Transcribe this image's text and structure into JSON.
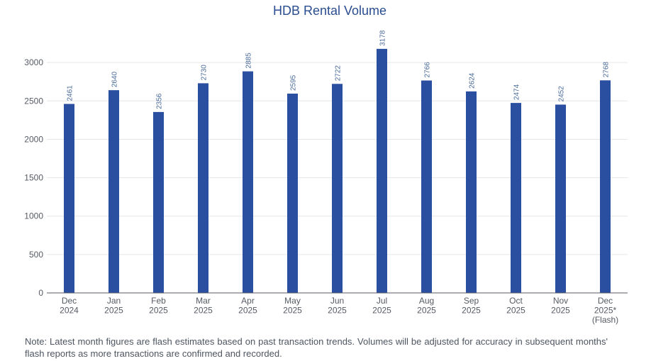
{
  "chart_data": {
    "type": "bar",
    "title": "HDB Rental Volume",
    "xlabel": "",
    "ylabel": "",
    "categories": [
      [
        "Dec",
        "2024"
      ],
      [
        "Jan",
        "2025"
      ],
      [
        "Feb",
        "2025"
      ],
      [
        "Mar",
        "2025"
      ],
      [
        "Apr",
        "2025"
      ],
      [
        "May",
        "2025"
      ],
      [
        "Jun",
        "2025"
      ],
      [
        "Jul",
        "2025"
      ],
      [
        "Aug",
        "2025"
      ],
      [
        "Sep",
        "2025"
      ],
      [
        "Oct",
        "2025"
      ],
      [
        "Nov",
        "2025"
      ],
      [
        "Dec",
        "2025*",
        "(Flash)"
      ]
    ],
    "values": [
      2461,
      2640,
      2356,
      2730,
      2885,
      2595,
      2722,
      3178,
      2766,
      2624,
      2474,
      2452,
      2768
    ],
    "ylim": [
      0,
      3250
    ],
    "yticks": [
      0,
      500,
      1000,
      1500,
      2000,
      2500,
      3000
    ],
    "grid": true,
    "legend": "none",
    "bar_color": "#2b4fa0",
    "label_color": "#4a6b99",
    "grid_color": "#e6e6e6"
  },
  "note": "Note: Latest month figures are flash estimates based on past transaction trends. Volumes will be adjusted for accuracy in subsequent months' flash reports as more transactions are confirmed and recorded."
}
